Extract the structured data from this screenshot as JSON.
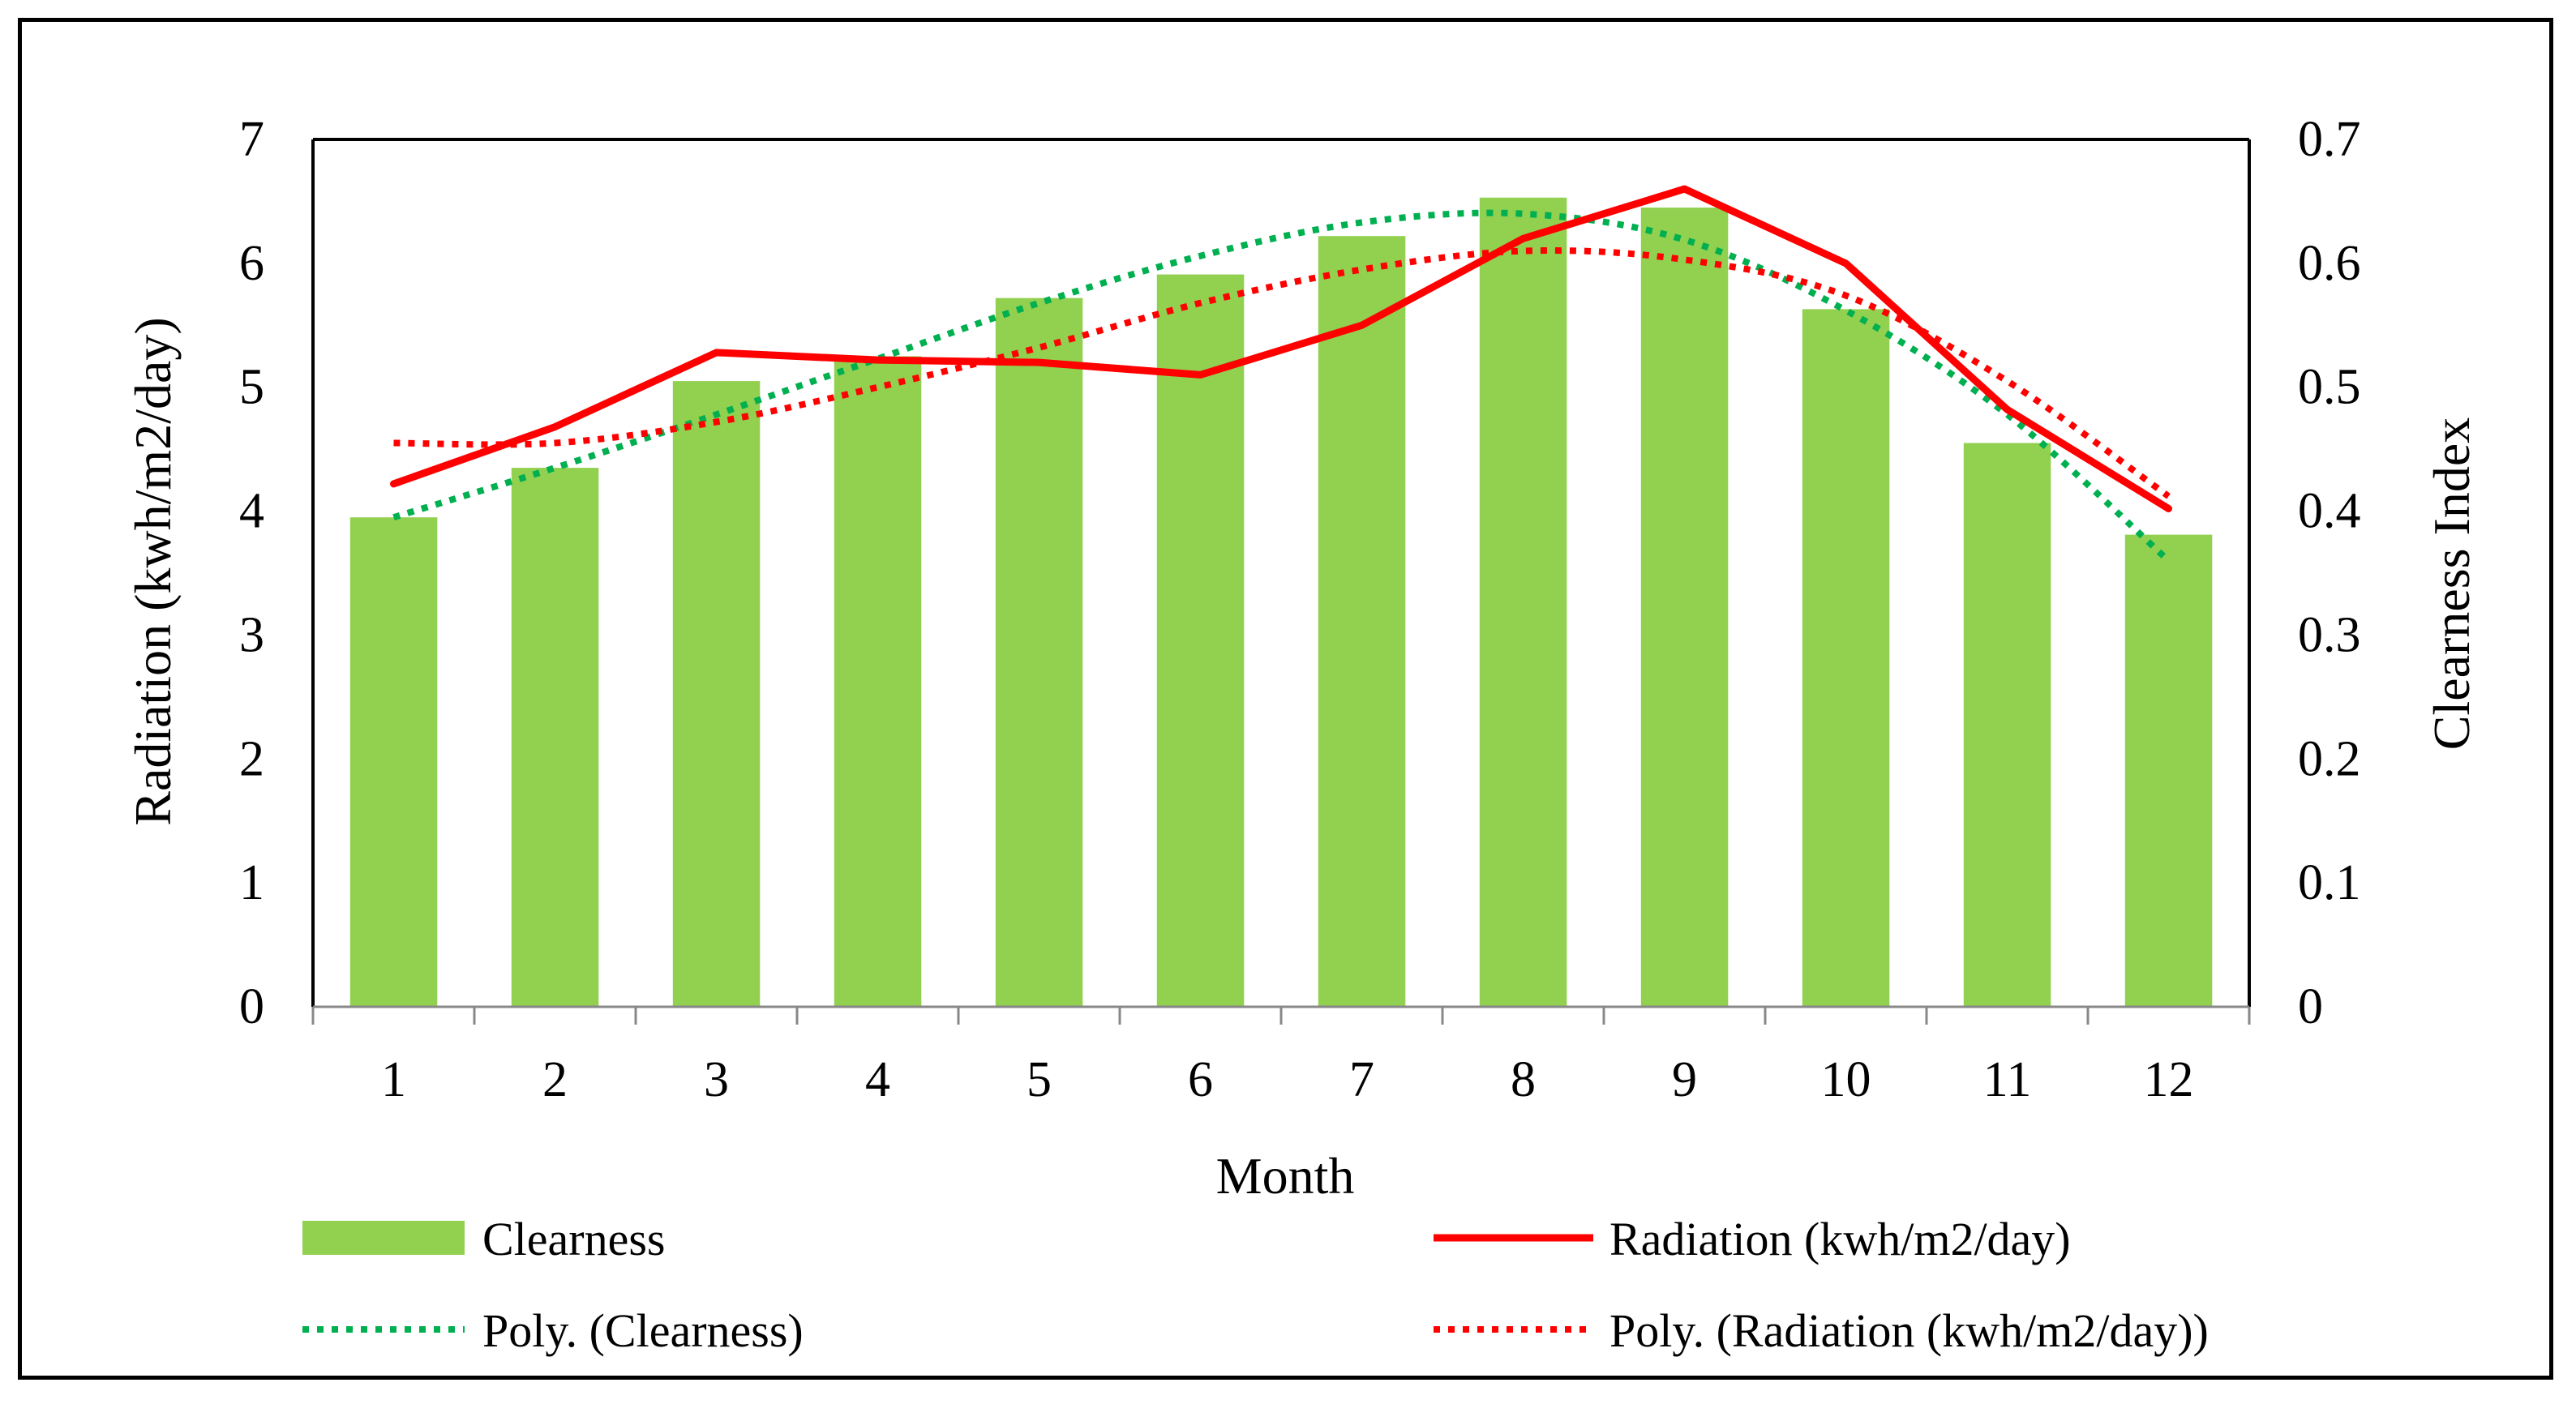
{
  "chart_data": {
    "type": "bar",
    "categories": [
      "1",
      "2",
      "3",
      "4",
      "5",
      "6",
      "7",
      "8",
      "9",
      "10",
      "11",
      "12"
    ],
    "series": [
      {
        "name": "Clearness",
        "kind": "bar",
        "axis": "right",
        "color": "#92D050",
        "values": [
          0.395,
          0.435,
          0.505,
          0.525,
          0.572,
          0.591,
          0.622,
          0.653,
          0.645,
          0.563,
          0.455,
          0.381
        ]
      },
      {
        "name": "Radiation (kwh/m2/day)",
        "kind": "line",
        "axis": "left",
        "color": "#FF0000",
        "values": [
          4.22,
          4.68,
          5.28,
          5.22,
          5.2,
          5.1,
          5.5,
          6.2,
          6.6,
          6.0,
          4.82,
          4.02
        ]
      },
      {
        "name": "Poly. (Clearness)",
        "kind": "trend-dotted",
        "axis": "right",
        "color": "#00B050",
        "values": [
          0.395,
          0.435,
          0.478,
          0.523,
          0.568,
          0.606,
          0.633,
          0.64,
          0.619,
          0.562,
          0.478,
          0.36
        ]
      },
      {
        "name": "Poly. (Radiation (kwh/m2/day))",
        "kind": "trend-dotted",
        "axis": "left",
        "color": "#FF0000",
        "values": [
          4.55,
          4.55,
          4.72,
          5.0,
          5.32,
          5.68,
          5.95,
          6.1,
          6.03,
          5.74,
          5.05,
          4.12
        ]
      }
    ],
    "xlabel": "Month",
    "ylabel": "Radiation (kwh/m2/day)",
    "y2label": "Clearness Index",
    "ylim": [
      0,
      7
    ],
    "y2lim": [
      0,
      0.7
    ],
    "yticks": [
      "0",
      "1",
      "2",
      "3",
      "4",
      "5",
      "6",
      "7"
    ],
    "y2ticks": [
      "0",
      "0.1",
      "0.2",
      "0.3",
      "0.4",
      "0.5",
      "0.6",
      "0.7"
    ],
    "grid": false,
    "legend_position": "bottom",
    "legend": {
      "bar_label": "Clearness",
      "radiation_label": "Radiation (kwh/m2/day)",
      "poly_clearness_label": "Poly. (Clearness)",
      "poly_radiation_label": "Poly. (Radiation (kwh/m2/day))"
    }
  }
}
